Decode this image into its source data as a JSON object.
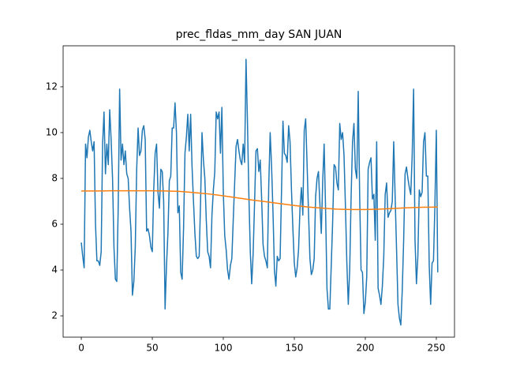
{
  "chart_data": {
    "type": "line",
    "title": "prec_fldas_mm_day SAN JUAN",
    "x": [
      0,
      1,
      2,
      3,
      4,
      5,
      6,
      7,
      8,
      9,
      10,
      11,
      12,
      13,
      14,
      15,
      16,
      17,
      18,
      19,
      20,
      21,
      22,
      23,
      24,
      25,
      26,
      27,
      28,
      29,
      30,
      31,
      32,
      33,
      34,
      35,
      36,
      37,
      38,
      39,
      40,
      41,
      42,
      43,
      44,
      45,
      46,
      47,
      48,
      49,
      50,
      51,
      52,
      53,
      54,
      55,
      56,
      57,
      58,
      59,
      60,
      61,
      62,
      63,
      64,
      65,
      66,
      67,
      68,
      69,
      70,
      71,
      72,
      73,
      74,
      75,
      76,
      77,
      78,
      79,
      80,
      81,
      82,
      83,
      84,
      85,
      86,
      87,
      88,
      89,
      90,
      91,
      92,
      93,
      94,
      95,
      96,
      97,
      98,
      99,
      100,
      101,
      102,
      103,
      104,
      105,
      106,
      107,
      108,
      109,
      110,
      111,
      112,
      113,
      114,
      115,
      116,
      117,
      118,
      119,
      120,
      121,
      122,
      123,
      124,
      125,
      126,
      127,
      128,
      129,
      130,
      131,
      132,
      133,
      134,
      135,
      136,
      137,
      138,
      139,
      140,
      141,
      142,
      143,
      144,
      145,
      146,
      147,
      148,
      149,
      150,
      151,
      152,
      153,
      154,
      155,
      156,
      157,
      158,
      159,
      160,
      161,
      162,
      163,
      164,
      165,
      166,
      167,
      168,
      169,
      170,
      171,
      172,
      173,
      174,
      175,
      176,
      177,
      178,
      179,
      180,
      181,
      182,
      183,
      184,
      185,
      186,
      187,
      188,
      189,
      190,
      191,
      192,
      193,
      194,
      195,
      196,
      197,
      198,
      199,
      200,
      201,
      202,
      203,
      204,
      205,
      206,
      207,
      208,
      209,
      210,
      211,
      212,
      213,
      214,
      215,
      216,
      217,
      218,
      219,
      220,
      221,
      222,
      223,
      224,
      225,
      226,
      227,
      228,
      229,
      230,
      231,
      232,
      233,
      234,
      235,
      236,
      237,
      238,
      239,
      240,
      241,
      242,
      243,
      244,
      245,
      246,
      247,
      248,
      249,
      250,
      251
    ],
    "series": [
      {
        "color": "#1f77b4",
        "values": [
          5.2,
          4.6,
          4.1,
          9.5,
          8.9,
          9.8,
          10.1,
          9.6,
          9.2,
          9.6,
          6.0,
          4.4,
          4.4,
          4.2,
          4.8,
          9.5,
          10.9,
          8.2,
          9.5,
          8.6,
          11.0,
          9.7,
          8.0,
          5.0,
          3.6,
          3.5,
          6.8,
          11.9,
          8.8,
          9.5,
          8.6,
          9.2,
          8.2,
          8.0,
          6.7,
          5.7,
          2.9,
          3.5,
          5.0,
          8.4,
          10.2,
          9.0,
          9.2,
          10.1,
          10.3,
          9.7,
          5.7,
          5.8,
          5.5,
          5.0,
          4.8,
          7.5,
          9.1,
          9.5,
          7.4,
          6.7,
          8.4,
          8.3,
          7.0,
          2.3,
          4.2,
          5.6,
          7.9,
          8.1,
          10.2,
          10.2,
          11.3,
          10.0,
          6.5,
          6.8,
          3.9,
          3.6,
          5.8,
          9.1,
          9.8,
          10.8,
          9.2,
          10.8,
          8.5,
          7.0,
          5.6,
          4.6,
          4.5,
          4.6,
          7.0,
          10.0,
          8.8,
          8.0,
          6.2,
          4.8,
          4.6,
          4.1,
          6.4,
          7.5,
          8.3,
          10.9,
          10.6,
          10.9,
          9.1,
          11.1,
          7.4,
          5.5,
          4.9,
          4.0,
          3.6,
          4.2,
          4.5,
          6.2,
          7.8,
          9.4,
          9.7,
          9.2,
          8.8,
          8.6,
          9.5,
          8.7,
          13.2,
          10.5,
          7.3,
          4.8,
          3.4,
          4.7,
          6.9,
          9.2,
          9.3,
          8.3,
          8.8,
          7.1,
          5.1,
          4.6,
          4.4,
          4.1,
          7.7,
          10.0,
          8.5,
          6.5,
          4.0,
          3.3,
          4.6,
          4.4,
          4.5,
          7.5,
          10.5,
          9.1,
          9.0,
          8.7,
          10.3,
          9.6,
          7.5,
          5.8,
          4.3,
          3.7,
          4.1,
          4.9,
          6.7,
          7.6,
          6.4,
          10.1,
          10.6,
          8.6,
          6.5,
          4.5,
          3.8,
          4.0,
          4.5,
          7.2,
          8.0,
          8.3,
          6.9,
          5.6,
          7.9,
          9.5,
          6.7,
          3.2,
          2.3,
          2.3,
          4.2,
          6.1,
          8.6,
          8.5,
          7.8,
          7.5,
          10.4,
          9.7,
          10.0,
          9.0,
          6.8,
          4.3,
          2.5,
          4.0,
          7.2,
          9.6,
          10.4,
          8.4,
          8.0,
          11.8,
          7.3,
          4.0,
          3.9,
          2.1,
          2.6,
          3.7,
          8.4,
          8.7,
          8.9,
          7.1,
          7.3,
          5.3,
          9.6,
          3.2,
          2.9,
          2.5,
          3.3,
          4.6,
          7.3,
          7.8,
          6.3,
          6.5,
          6.6,
          7.0,
          9.6,
          7.2,
          4.9,
          2.5,
          1.9,
          1.6,
          3.1,
          5.3,
          8.2,
          8.5,
          8.0,
          7.6,
          7.3,
          9.0,
          11.9,
          5.3,
          3.4,
          4.6,
          7.5,
          7.2,
          7.4,
          9.6,
          10.0,
          8.1,
          8.1,
          4.2,
          2.5,
          4.3,
          4.4,
          6.8,
          10.1,
          3.9
        ]
      },
      {
        "color": "#ff7f0e",
        "x": [
          0,
          10,
          20,
          30,
          40,
          50,
          60,
          70,
          80,
          90,
          100,
          110,
          120,
          130,
          140,
          150,
          160,
          170,
          180,
          190,
          200,
          210,
          220,
          230,
          240,
          250,
          251
        ],
        "values": [
          7.45,
          7.45,
          7.46,
          7.46,
          7.46,
          7.46,
          7.45,
          7.43,
          7.38,
          7.32,
          7.24,
          7.15,
          7.06,
          6.98,
          6.9,
          6.82,
          6.75,
          6.7,
          6.66,
          6.64,
          6.64,
          6.66,
          6.69,
          6.72,
          6.74,
          6.75,
          6.75
        ]
      }
    ],
    "xlim": [
      -12.8,
      262.8
    ],
    "ylim": [
      1.07,
      13.79
    ],
    "xticks": [
      0,
      50,
      100,
      150,
      200,
      250
    ],
    "yticks": [
      2,
      4,
      6,
      8,
      10,
      12
    ]
  }
}
